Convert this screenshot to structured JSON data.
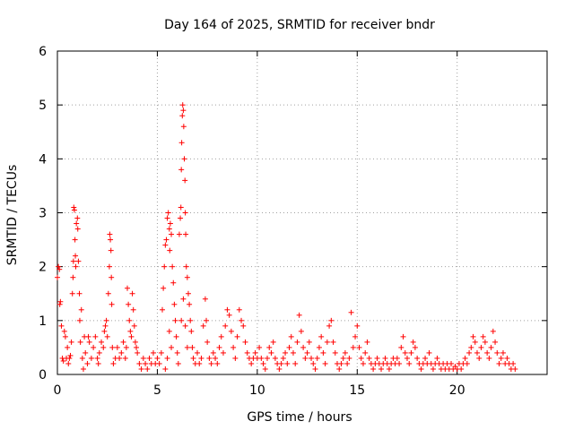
{
  "chart_data": {
    "type": "scatter",
    "title": "Day 164 of 2025, SRMTID for receiver bndr",
    "xlabel": "GPS time / hours",
    "ylabel": "SRMTID / TECUs",
    "xlim": [
      0,
      24.5
    ],
    "ylim": [
      0,
      6
    ],
    "xticks": [
      0,
      5,
      10,
      15,
      20
    ],
    "yticks": [
      0,
      1,
      2,
      3,
      4,
      5,
      6
    ],
    "grid": true,
    "marker": "plus",
    "color": "#ff0000",
    "series": [
      {
        "name": "SRMTID",
        "points": [
          [
            0.0,
            1.8
          ],
          [
            0.05,
            2.0
          ],
          [
            0.1,
            1.95
          ],
          [
            0.12,
            1.3
          ],
          [
            0.15,
            1.35
          ],
          [
            0.2,
            0.9
          ],
          [
            0.25,
            0.3
          ],
          [
            0.3,
            0.25
          ],
          [
            0.35,
            0.8
          ],
          [
            0.4,
            0.7
          ],
          [
            0.45,
            0.3
          ],
          [
            0.5,
            0.5
          ],
          [
            0.55,
            0.2
          ],
          [
            0.6,
            0.3
          ],
          [
            0.65,
            0.35
          ],
          [
            0.7,
            0.6
          ],
          [
            0.75,
            1.5
          ],
          [
            0.78,
            1.8
          ],
          [
            0.8,
            2.1
          ],
          [
            0.82,
            3.1
          ],
          [
            0.85,
            3.05
          ],
          [
            0.88,
            2.5
          ],
          [
            0.9,
            2.2
          ],
          [
            0.92,
            2.0
          ],
          [
            0.95,
            2.8
          ],
          [
            1.0,
            2.9
          ],
          [
            1.02,
            2.7
          ],
          [
            1.05,
            2.1
          ],
          [
            1.1,
            1.5
          ],
          [
            1.12,
            1.0
          ],
          [
            1.15,
            0.6
          ],
          [
            1.2,
            1.2
          ],
          [
            1.25,
            0.3
          ],
          [
            1.3,
            0.1
          ],
          [
            1.35,
            0.7
          ],
          [
            1.4,
            0.4
          ],
          [
            1.5,
            0.2
          ],
          [
            1.55,
            0.7
          ],
          [
            1.6,
            0.6
          ],
          [
            1.7,
            0.3
          ],
          [
            1.8,
            0.5
          ],
          [
            1.9,
            0.7
          ],
          [
            2.0,
            0.3
          ],
          [
            2.05,
            0.2
          ],
          [
            2.1,
            0.4
          ],
          [
            2.2,
            0.6
          ],
          [
            2.3,
            0.5
          ],
          [
            2.35,
            0.8
          ],
          [
            2.4,
            0.9
          ],
          [
            2.45,
            1.0
          ],
          [
            2.5,
            0.7
          ],
          [
            2.55,
            1.5
          ],
          [
            2.6,
            2.0
          ],
          [
            2.62,
            2.6
          ],
          [
            2.65,
            2.5
          ],
          [
            2.68,
            2.3
          ],
          [
            2.7,
            1.8
          ],
          [
            2.72,
            1.3
          ],
          [
            2.75,
            0.5
          ],
          [
            2.8,
            0.2
          ],
          [
            2.9,
            0.3
          ],
          [
            3.0,
            0.5
          ],
          [
            3.1,
            0.3
          ],
          [
            3.2,
            0.4
          ],
          [
            3.3,
            0.6
          ],
          [
            3.4,
            0.3
          ],
          [
            3.45,
            0.5
          ],
          [
            3.5,
            1.6
          ],
          [
            3.55,
            1.3
          ],
          [
            3.6,
            1.0
          ],
          [
            3.65,
            0.8
          ],
          [
            3.7,
            0.7
          ],
          [
            3.75,
            1.5
          ],
          [
            3.8,
            1.2
          ],
          [
            3.85,
            0.9
          ],
          [
            3.9,
            0.6
          ],
          [
            3.95,
            0.5
          ],
          [
            4.0,
            0.4
          ],
          [
            4.1,
            0.2
          ],
          [
            4.2,
            0.1
          ],
          [
            4.3,
            0.3
          ],
          [
            4.4,
            0.2
          ],
          [
            4.5,
            0.1
          ],
          [
            4.6,
            0.3
          ],
          [
            4.7,
            0.2
          ],
          [
            4.8,
            0.4
          ],
          [
            4.9,
            0.2
          ],
          [
            5.0,
            0.3
          ],
          [
            5.1,
            0.2
          ],
          [
            5.2,
            0.4
          ],
          [
            5.25,
            1.2
          ],
          [
            5.3,
            1.6
          ],
          [
            5.35,
            2.0
          ],
          [
            5.4,
            2.4
          ],
          [
            5.45,
            2.5
          ],
          [
            5.5,
            2.9
          ],
          [
            5.55,
            3.0
          ],
          [
            5.6,
            2.7
          ],
          [
            5.62,
            2.3
          ],
          [
            5.65,
            2.8
          ],
          [
            5.7,
            2.6
          ],
          [
            5.75,
            2.0
          ],
          [
            5.8,
            1.7
          ],
          [
            5.85,
            1.3
          ],
          [
            5.9,
            1.0
          ],
          [
            5.95,
            0.7
          ],
          [
            6.0,
            0.4
          ],
          [
            6.05,
            0.2
          ],
          [
            5.4,
            0.1
          ],
          [
            5.5,
            0.3
          ],
          [
            5.6,
            0.8
          ],
          [
            5.7,
            0.5
          ],
          [
            6.1,
            2.6
          ],
          [
            6.15,
            2.9
          ],
          [
            6.18,
            3.1
          ],
          [
            6.2,
            3.8
          ],
          [
            6.22,
            4.3
          ],
          [
            6.25,
            4.8
          ],
          [
            6.27,
            5.0
          ],
          [
            6.3,
            4.9
          ],
          [
            6.32,
            4.6
          ],
          [
            6.35,
            4.0
          ],
          [
            6.38,
            3.6
          ],
          [
            6.4,
            3.0
          ],
          [
            6.42,
            2.6
          ],
          [
            6.45,
            2.0
          ],
          [
            6.5,
            1.8
          ],
          [
            6.55,
            1.5
          ],
          [
            6.6,
            1.3
          ],
          [
            6.65,
            1.0
          ],
          [
            6.7,
            0.8
          ],
          [
            6.75,
            0.5
          ],
          [
            6.8,
            0.3
          ],
          [
            6.9,
            0.2
          ],
          [
            6.2,
            1.0
          ],
          [
            6.3,
            1.4
          ],
          [
            6.4,
            0.9
          ],
          [
            6.5,
            0.5
          ],
          [
            7.0,
            0.4
          ],
          [
            7.1,
            0.2
          ],
          [
            7.2,
            0.3
          ],
          [
            7.3,
            0.9
          ],
          [
            7.4,
            1.4
          ],
          [
            7.45,
            1.0
          ],
          [
            7.5,
            0.6
          ],
          [
            7.6,
            0.3
          ],
          [
            7.7,
            0.2
          ],
          [
            7.8,
            0.4
          ],
          [
            7.9,
            0.3
          ],
          [
            8.0,
            0.2
          ],
          [
            8.1,
            0.5
          ],
          [
            8.2,
            0.7
          ],
          [
            8.3,
            0.4
          ],
          [
            8.4,
            0.9
          ],
          [
            8.5,
            1.2
          ],
          [
            8.6,
            1.1
          ],
          [
            8.7,
            0.8
          ],
          [
            8.8,
            0.5
          ],
          [
            8.9,
            0.3
          ],
          [
            9.0,
            0.7
          ],
          [
            9.1,
            1.2
          ],
          [
            9.2,
            1.0
          ],
          [
            9.3,
            0.9
          ],
          [
            9.4,
            0.6
          ],
          [
            9.5,
            0.4
          ],
          [
            9.6,
            0.3
          ],
          [
            9.7,
            0.2
          ],
          [
            9.8,
            0.3
          ],
          [
            9.9,
            0.4
          ],
          [
            10.0,
            0.3
          ],
          [
            10.1,
            0.5
          ],
          [
            10.2,
            0.3
          ],
          [
            10.3,
            0.2
          ],
          [
            10.4,
            0.1
          ],
          [
            10.5,
            0.3
          ],
          [
            10.6,
            0.5
          ],
          [
            10.7,
            0.4
          ],
          [
            10.8,
            0.6
          ],
          [
            10.9,
            0.3
          ],
          [
            11.0,
            0.2
          ],
          [
            11.1,
            0.1
          ],
          [
            11.2,
            0.2
          ],
          [
            11.3,
            0.3
          ],
          [
            11.4,
            0.4
          ],
          [
            11.5,
            0.2
          ],
          [
            11.6,
            0.5
          ],
          [
            11.7,
            0.7
          ],
          [
            11.8,
            0.4
          ],
          [
            11.9,
            0.2
          ],
          [
            12.0,
            0.6
          ],
          [
            12.1,
            1.1
          ],
          [
            12.2,
            0.8
          ],
          [
            12.3,
            0.5
          ],
          [
            12.4,
            0.3
          ],
          [
            12.5,
            0.4
          ],
          [
            12.6,
            0.6
          ],
          [
            12.7,
            0.3
          ],
          [
            12.8,
            0.2
          ],
          [
            12.9,
            0.1
          ],
          [
            13.0,
            0.3
          ],
          [
            13.1,
            0.5
          ],
          [
            13.2,
            0.7
          ],
          [
            13.3,
            0.4
          ],
          [
            13.4,
            0.2
          ],
          [
            13.5,
            0.6
          ],
          [
            13.6,
            0.9
          ],
          [
            13.7,
            1.0
          ],
          [
            13.8,
            0.6
          ],
          [
            13.9,
            0.4
          ],
          [
            14.0,
            0.2
          ],
          [
            14.1,
            0.1
          ],
          [
            14.2,
            0.2
          ],
          [
            14.3,
            0.3
          ],
          [
            14.4,
            0.4
          ],
          [
            14.5,
            0.2
          ],
          [
            14.6,
            0.3
          ],
          [
            14.7,
            1.15
          ],
          [
            14.8,
            0.5
          ],
          [
            14.9,
            0.7
          ],
          [
            15.0,
            0.9
          ],
          [
            15.1,
            0.5
          ],
          [
            15.2,
            0.3
          ],
          [
            15.3,
            0.2
          ],
          [
            15.4,
            0.4
          ],
          [
            15.5,
            0.6
          ],
          [
            15.6,
            0.3
          ],
          [
            15.7,
            0.2
          ],
          [
            15.8,
            0.1
          ],
          [
            15.9,
            0.2
          ],
          [
            16.0,
            0.3
          ],
          [
            16.1,
            0.2
          ],
          [
            16.2,
            0.1
          ],
          [
            16.3,
            0.2
          ],
          [
            16.4,
            0.3
          ],
          [
            16.5,
            0.2
          ],
          [
            16.6,
            0.1
          ],
          [
            16.7,
            0.2
          ],
          [
            16.8,
            0.3
          ],
          [
            16.9,
            0.2
          ],
          [
            17.0,
            0.3
          ],
          [
            17.1,
            0.2
          ],
          [
            17.2,
            0.5
          ],
          [
            17.3,
            0.7
          ],
          [
            17.4,
            0.4
          ],
          [
            17.5,
            0.3
          ],
          [
            17.6,
            0.2
          ],
          [
            17.7,
            0.4
          ],
          [
            17.8,
            0.6
          ],
          [
            17.9,
            0.5
          ],
          [
            18.0,
            0.3
          ],
          [
            18.1,
            0.2
          ],
          [
            18.2,
            0.1
          ],
          [
            18.3,
            0.2
          ],
          [
            18.4,
            0.3
          ],
          [
            18.5,
            0.2
          ],
          [
            18.6,
            0.4
          ],
          [
            18.7,
            0.2
          ],
          [
            18.8,
            0.1
          ],
          [
            18.9,
            0.2
          ],
          [
            19.0,
            0.3
          ],
          [
            19.1,
            0.2
          ],
          [
            19.2,
            0.1
          ],
          [
            19.3,
            0.2
          ],
          [
            19.4,
            0.1
          ],
          [
            19.5,
            0.2
          ],
          [
            19.6,
            0.1
          ],
          [
            19.7,
            0.2
          ],
          [
            19.8,
            0.1
          ],
          [
            19.9,
            0.15
          ],
          [
            20.0,
            0.1
          ],
          [
            20.1,
            0.2
          ],
          [
            20.2,
            0.1
          ],
          [
            20.3,
            0.2
          ],
          [
            20.4,
            0.3
          ],
          [
            20.5,
            0.2
          ],
          [
            20.6,
            0.4
          ],
          [
            20.7,
            0.5
          ],
          [
            20.8,
            0.7
          ],
          [
            20.9,
            0.6
          ],
          [
            21.0,
            0.4
          ],
          [
            21.1,
            0.3
          ],
          [
            21.2,
            0.5
          ],
          [
            21.3,
            0.7
          ],
          [
            21.4,
            0.6
          ],
          [
            21.5,
            0.4
          ],
          [
            21.6,
            0.3
          ],
          [
            21.7,
            0.5
          ],
          [
            21.8,
            0.8
          ],
          [
            21.9,
            0.6
          ],
          [
            22.0,
            0.4
          ],
          [
            22.1,
            0.2
          ],
          [
            22.2,
            0.3
          ],
          [
            22.3,
            0.4
          ],
          [
            22.4,
            0.2
          ],
          [
            22.5,
            0.3
          ],
          [
            22.6,
            0.2
          ],
          [
            22.7,
            0.1
          ],
          [
            22.8,
            0.2
          ],
          [
            22.9,
            0.1
          ]
        ]
      }
    ]
  }
}
